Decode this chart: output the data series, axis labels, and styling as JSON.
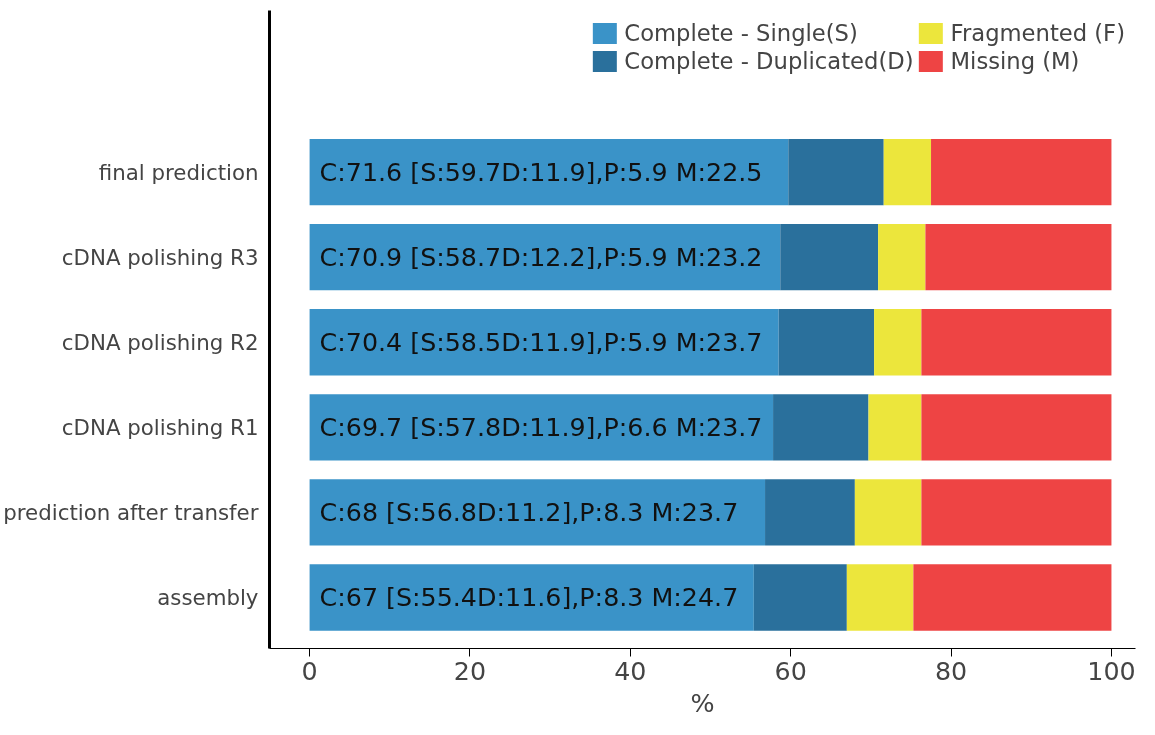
{
  "chart_data": {
    "type": "bar",
    "orientation": "horizontal",
    "stacked": true,
    "xlabel": "%",
    "categories": [
      "final prediction",
      "cDNA polishing R3",
      "cDNA polishing R2",
      "cDNA polishing R1",
      "prediction after transfer",
      "assembly"
    ],
    "series": [
      {
        "name": "Complete - Single(S)",
        "color": "#3a93c8",
        "values": [
          59.7,
          58.7,
          58.5,
          57.8,
          56.8,
          55.4
        ]
      },
      {
        "name": "Complete - Duplicated(D)",
        "color": "#2a709c",
        "values": [
          11.9,
          12.2,
          11.9,
          11.9,
          11.2,
          11.6
        ]
      },
      {
        "name": "Fragmented (F)",
        "color": "#ece63c",
        "values": [
          5.9,
          5.9,
          5.9,
          6.6,
          8.3,
          8.3
        ]
      },
      {
        "name": "Missing (M)",
        "color": "#ee4444",
        "values": [
          22.5,
          23.2,
          23.7,
          23.7,
          23.7,
          24.7
        ]
      }
    ],
    "annotations": [
      "C:71.6 [S:59.7D:11.9],P:5.9 M:22.5",
      "C:70.9 [S:58.7D:12.2],P:5.9 M:23.2",
      "C:70.4 [S:58.5D:11.9],P:5.9 M:23.7",
      "C:69.7 [S:57.8D:11.9],P:6.6 M:23.7",
      "C:68 [S:56.8D:11.2],P:8.3 M:23.7",
      "C:67 [S:55.4D:11.6],P:8.3 M:24.7"
    ],
    "xlim": [
      -5,
      103
    ],
    "xticks": [
      0,
      20,
      40,
      60,
      80,
      100
    ],
    "grid": false,
    "legend": "top"
  }
}
